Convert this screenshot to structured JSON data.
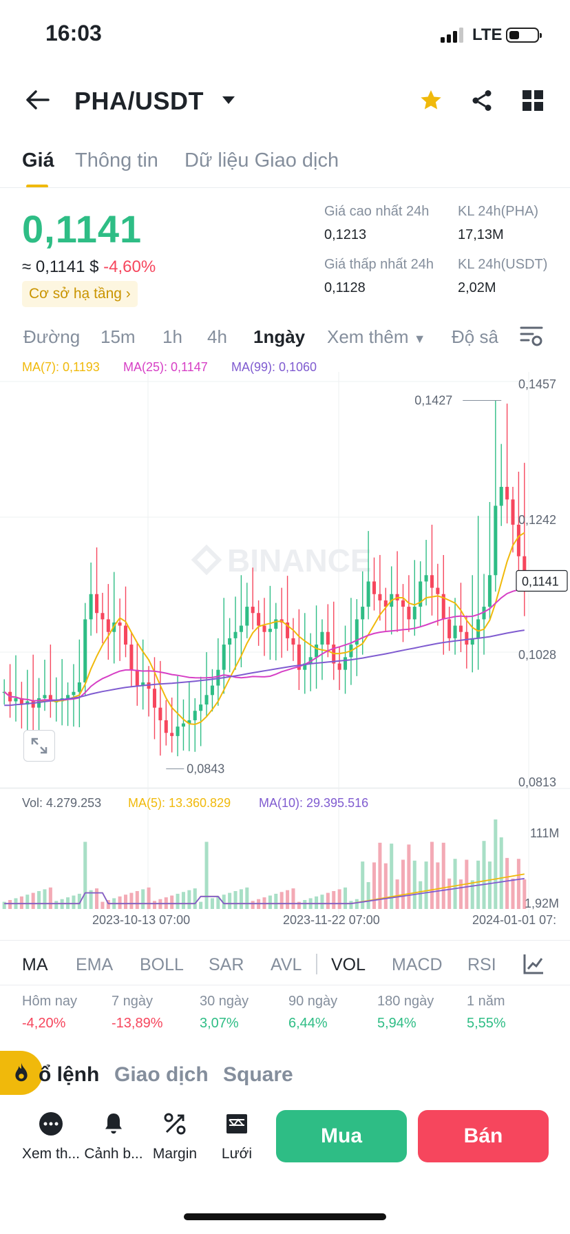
{
  "status": {
    "time": "16:03",
    "network": "LTE"
  },
  "header": {
    "pair": "PHA/USDT"
  },
  "tabs": [
    {
      "label": "Giá"
    },
    {
      "label": "Thông tin"
    },
    {
      "label": "Dữ liệu Giao dịch"
    }
  ],
  "ticker": {
    "price": "0,1141",
    "approx_prefix": "≈",
    "approx": "0,1141 $",
    "change": "-4,60%",
    "badge": "Cơ sở hạ tầng",
    "high_label": "Giá cao nhất 24h",
    "high": "0,1213",
    "low_label": "Giá thấp nhất 24h",
    "low": "0,1128",
    "vol_pha_label": "KL 24h(PHA)",
    "vol_pha": "17,13M",
    "vol_usdt_label": "KL 24h(USDT)",
    "vol_usdt": "2,02M"
  },
  "intervals": [
    {
      "label": "Đường"
    },
    {
      "label": "15m"
    },
    {
      "label": "1h"
    },
    {
      "label": "4h"
    },
    {
      "label": "1ngày"
    },
    {
      "label": "Xem thêm"
    },
    {
      "label": "Độ sâ"
    }
  ],
  "ma_legend": {
    "ma7": "MA(7): 0,1193",
    "ma25": "MA(25): 0,1147",
    "ma99": "MA(99): 0,1060"
  },
  "colors": {
    "up": "#2ebd85",
    "down": "#f6465d",
    "ma7": "#f0b90b",
    "ma25": "#d63fc5",
    "ma99": "#7f5bd0",
    "accent": "#f0b90b"
  },
  "vol_legend": {
    "vol": "Vol: 4.279.253",
    "ma5": "MA(5): 13.360.829",
    "ma10": "MA(10): 29.395.516"
  },
  "chart_data": {
    "type": "candlestick",
    "watermark": "BINANCE",
    "price_axis": [
      "0,1457",
      "0,1242",
      "0,1028",
      "0,0813"
    ],
    "current_price_label": "0,1141",
    "high_marker": "0,1427",
    "low_marker": "0,0843",
    "ylim": [
      0.0813,
      0.1457
    ],
    "volume_axis": [
      "111M",
      "1,92M"
    ],
    "time_axis": [
      "2023-10-13 07:00",
      "2023-11-22 07:00",
      "2024-01-01 07:"
    ]
  },
  "indicators": [
    {
      "label": "MA"
    },
    {
      "label": "EMA"
    },
    {
      "label": "BOLL"
    },
    {
      "label": "SAR"
    },
    {
      "label": "AVL"
    },
    {
      "label": "VOL"
    },
    {
      "label": "MACD"
    },
    {
      "label": "RSI"
    }
  ],
  "performance": [
    {
      "label": "Hôm nay",
      "value": "-4,20%",
      "dir": "down"
    },
    {
      "label": "7 ngày",
      "value": "-13,89%",
      "dir": "down"
    },
    {
      "label": "30 ngày",
      "value": "3,07%",
      "dir": "up"
    },
    {
      "label": "90 ngày",
      "value": "6,44%",
      "dir": "up"
    },
    {
      "label": "180 ngày",
      "value": "5,94%",
      "dir": "up"
    },
    {
      "label": "1 năm",
      "value": "5,55%",
      "dir": "up"
    }
  ],
  "bottom_tabs": [
    {
      "label": "ổ lệnh"
    },
    {
      "label": "Giao dịch"
    },
    {
      "label": "Square"
    }
  ],
  "tools": [
    {
      "label": "Xem th...",
      "icon": "more-icon"
    },
    {
      "label": "Cảnh b...",
      "icon": "bell-icon"
    },
    {
      "label": "Margin",
      "icon": "margin-icon"
    },
    {
      "label": "Lưới",
      "icon": "grid-bot-icon"
    }
  ],
  "actions": {
    "buy": "Mua",
    "sell": "Bán"
  }
}
